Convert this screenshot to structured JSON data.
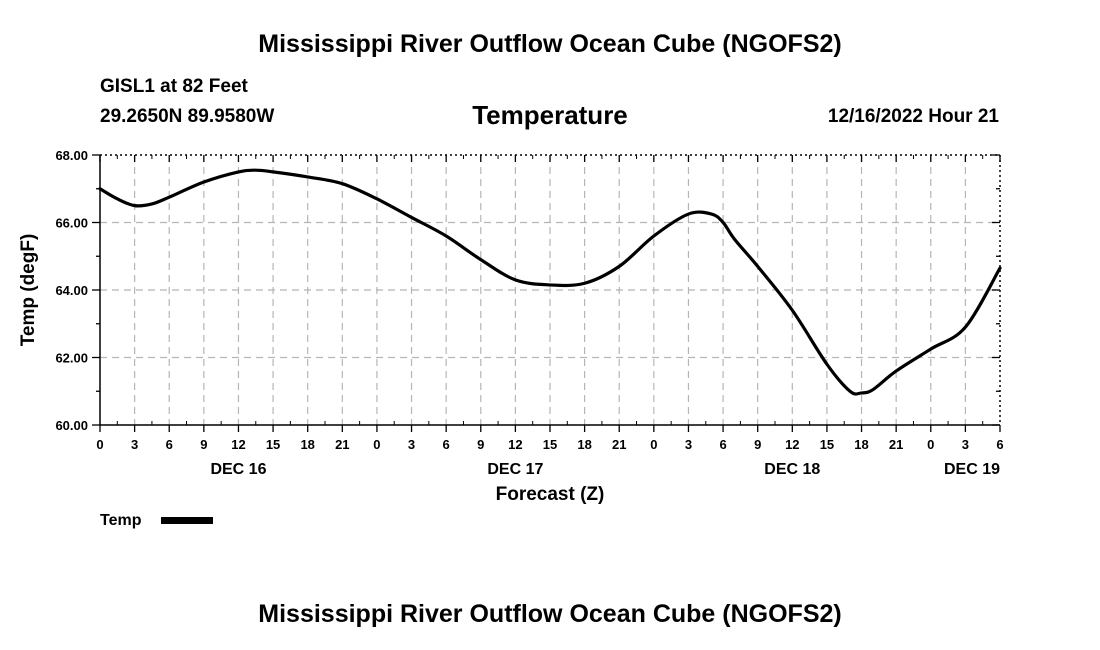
{
  "page": {
    "title": "Mississippi River Outflow Ocean Cube (NGOFS2)",
    "station": "GISL1 at 82 Feet",
    "coordinates": "29.2650N  89.9580W",
    "datetime": "12/16/2022 Hour 21",
    "footer_title": "Mississippi River Outflow Ocean Cube (NGOFS2)"
  },
  "chart_data": {
    "type": "line",
    "title": "Temperature",
    "xlabel": "Forecast (Z)",
    "ylabel": "Temp (degF)",
    "xlim": [
      0,
      78
    ],
    "ylim": [
      60,
      68
    ],
    "y_ticks": [
      60,
      62,
      64,
      66,
      68
    ],
    "y_tick_labels": [
      "60.00",
      "62.00",
      "64.00",
      "66.00",
      "68.00"
    ],
    "x_ticks": [
      0,
      3,
      6,
      9,
      12,
      15,
      18,
      21,
      24,
      27,
      30,
      33,
      36,
      39,
      42,
      45,
      48,
      51,
      54,
      57,
      60,
      63,
      66,
      69,
      72,
      75,
      78
    ],
    "x_tick_labels": [
      "0",
      "3",
      "6",
      "9",
      "12",
      "15",
      "18",
      "21",
      "0",
      "3",
      "6",
      "9",
      "12",
      "15",
      "18",
      "21",
      "0",
      "3",
      "6",
      "9",
      "12",
      "15",
      "18",
      "21",
      "0",
      "3",
      "6"
    ],
    "day_labels": [
      {
        "x": 12,
        "label": "DEC 16"
      },
      {
        "x": 36,
        "label": "DEC 17"
      },
      {
        "x": 60,
        "label": "DEC 18"
      },
      {
        "x": 78,
        "label": "DEC 19"
      }
    ],
    "grid": true,
    "legend": "bottom-left",
    "series": [
      {
        "name": "Temp",
        "color": "#000000",
        "x": [
          0,
          1.5,
          3,
          4.5,
          6,
          9,
          12,
          13.5,
          15,
          18,
          21,
          24,
          27,
          30,
          33,
          36,
          39,
          42,
          45,
          48,
          51,
          53,
          54,
          55,
          57,
          60,
          63,
          65,
          66,
          67,
          69,
          72,
          75,
          78
        ],
        "values": [
          67.0,
          66.7,
          66.5,
          66.55,
          66.75,
          67.2,
          67.5,
          67.55,
          67.5,
          67.35,
          67.15,
          66.7,
          66.15,
          65.6,
          64.9,
          64.3,
          64.15,
          64.2,
          64.7,
          65.6,
          66.25,
          66.25,
          66.0,
          65.5,
          64.7,
          63.4,
          61.8,
          61.0,
          60.95,
          61.05,
          61.6,
          62.25,
          62.9,
          64.65
        ]
      }
    ]
  }
}
